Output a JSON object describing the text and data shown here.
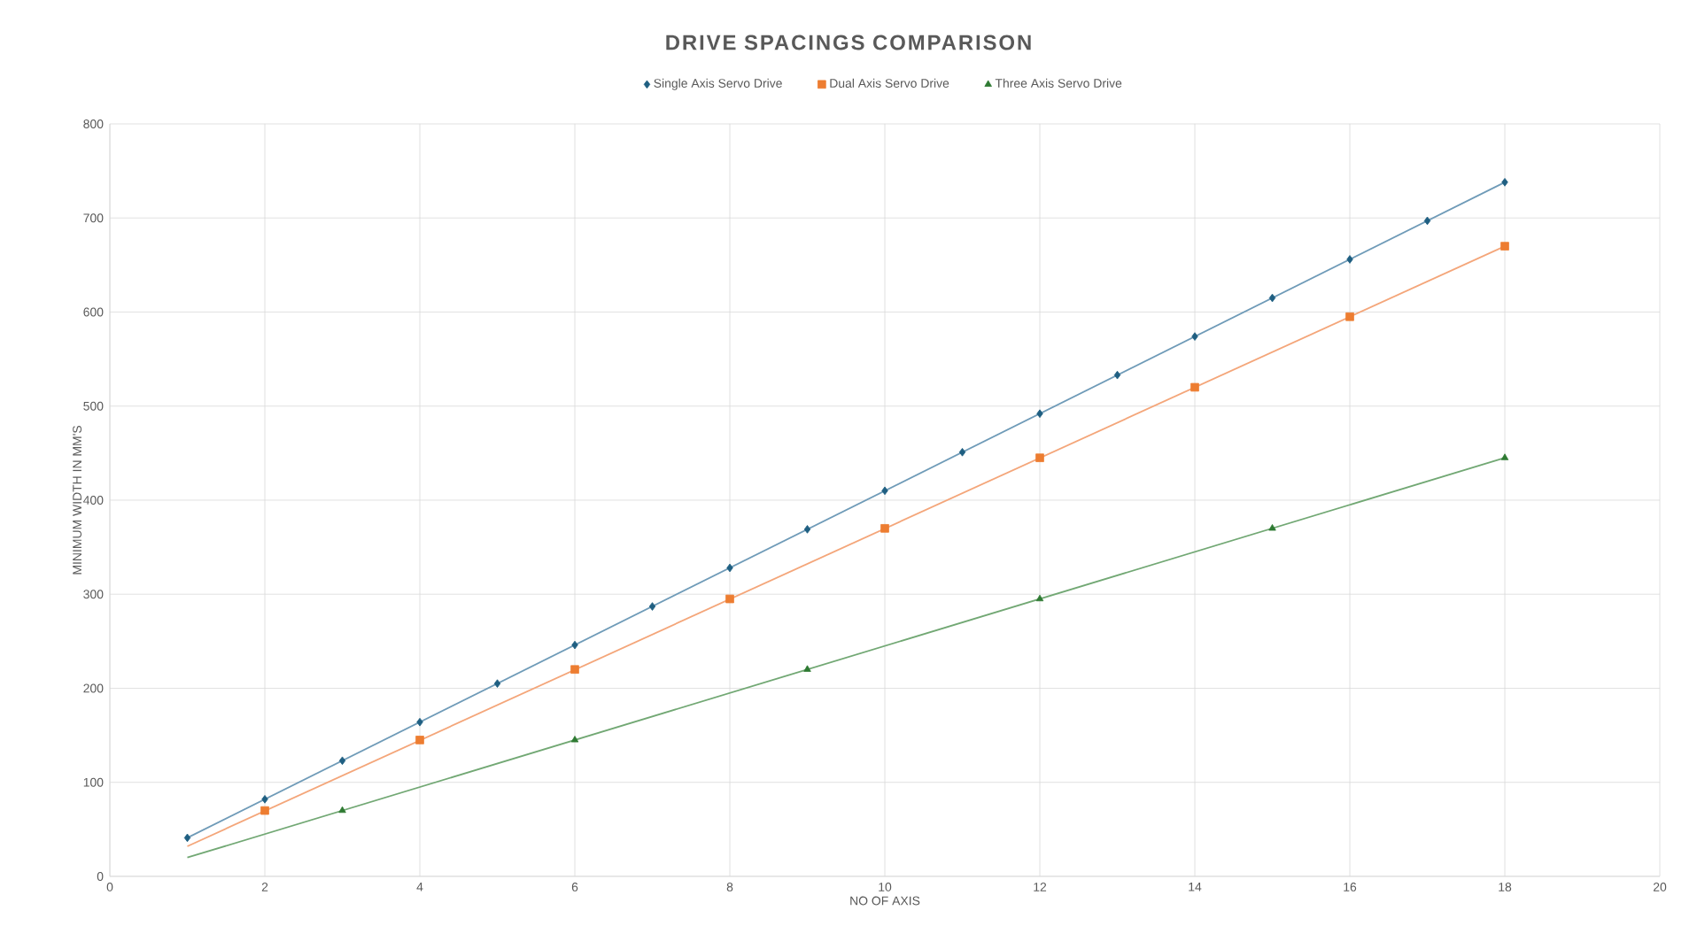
{
  "chart_data": {
    "type": "scatter",
    "title": "DRIVE SPACINGS COMPARISON",
    "xlabel": "NO OF AXIS",
    "ylabel": "MINIMUM WIDTH IN MM'S",
    "xlim": [
      0,
      20
    ],
    "xticks": [
      0,
      2,
      4,
      6,
      8,
      10,
      12,
      14,
      16,
      18,
      20
    ],
    "ylim": [
      0,
      800
    ],
    "yticks": [
      0,
      100,
      200,
      300,
      400,
      500,
      600,
      700,
      800
    ],
    "grid": true,
    "legend": "top",
    "series": [
      {
        "name": "Single Axis Servo Drive",
        "color": "#1f5f82",
        "marker": "diamond",
        "x": [
          1,
          2,
          3,
          4,
          5,
          6,
          7,
          8,
          9,
          10,
          11,
          12,
          13,
          14,
          15,
          16,
          17,
          18
        ],
        "values": [
          41,
          82,
          123,
          164,
          205,
          246,
          287,
          328,
          369,
          410,
          451,
          492,
          533,
          574,
          615,
          656,
          697,
          738
        ]
      },
      {
        "name": "Dual Axis Servo Drive",
        "color": "#ed7d31",
        "marker": "square",
        "x": [
          2,
          4,
          6,
          8,
          10,
          12,
          14,
          16,
          18
        ],
        "values": [
          70,
          145,
          220,
          295,
          370,
          445,
          520,
          595,
          670
        ]
      },
      {
        "name": "Three Axis Servo Drive",
        "color": "#2e7a32",
        "marker": "triangle",
        "x": [
          3,
          6,
          9,
          12,
          15,
          18
        ],
        "values": [
          70,
          145,
          220,
          295,
          370,
          445
        ]
      },
      {
        "type": "line",
        "color": "#6f9bb8",
        "marker": "none",
        "x": [
          1,
          18
        ],
        "values": [
          41,
          738
        ]
      },
      {
        "type": "line",
        "color": "#f4a67a",
        "marker": "none",
        "x": [
          1,
          18
        ],
        "values": [
          32,
          670
        ]
      },
      {
        "type": "line",
        "color": "#72a874",
        "marker": "none",
        "x": [
          1,
          18
        ],
        "values": [
          20,
          445
        ]
      }
    ]
  }
}
